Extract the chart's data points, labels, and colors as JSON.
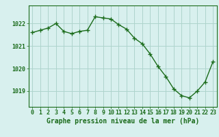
{
  "x": [
    0,
    1,
    2,
    3,
    4,
    5,
    6,
    7,
    8,
    9,
    10,
    11,
    12,
    13,
    14,
    15,
    16,
    17,
    18,
    19,
    20,
    21,
    22,
    23
  ],
  "y": [
    1021.6,
    1021.7,
    1021.8,
    1022.0,
    1021.65,
    1021.55,
    1021.65,
    1021.7,
    1022.3,
    1022.25,
    1022.2,
    1021.95,
    1021.75,
    1021.35,
    1021.1,
    1020.65,
    1020.1,
    1019.65,
    1019.1,
    1018.8,
    1018.7,
    1019.0,
    1019.4,
    1020.3
  ],
  "line_color": "#1a6b1a",
  "marker": "+",
  "markersize": 4,
  "linewidth": 1.0,
  "bg_color": "#d8f0ee",
  "grid_color": "#aed4cc",
  "axis_color": "#1a6b1a",
  "xlabel": "Graphe pression niveau de la mer (hPa)",
  "xlabel_fontsize": 7,
  "ylabel_ticks": [
    1019,
    1020,
    1021,
    1022
  ],
  "ylim": [
    1018.3,
    1022.8
  ],
  "xlim": [
    -0.5,
    23.5
  ],
  "xticks": [
    0,
    1,
    2,
    3,
    4,
    5,
    6,
    7,
    8,
    9,
    10,
    11,
    12,
    13,
    14,
    15,
    16,
    17,
    18,
    19,
    20,
    21,
    22,
    23
  ],
  "tick_fontsize": 6,
  "bottom_label_color": "#1a6b1a"
}
